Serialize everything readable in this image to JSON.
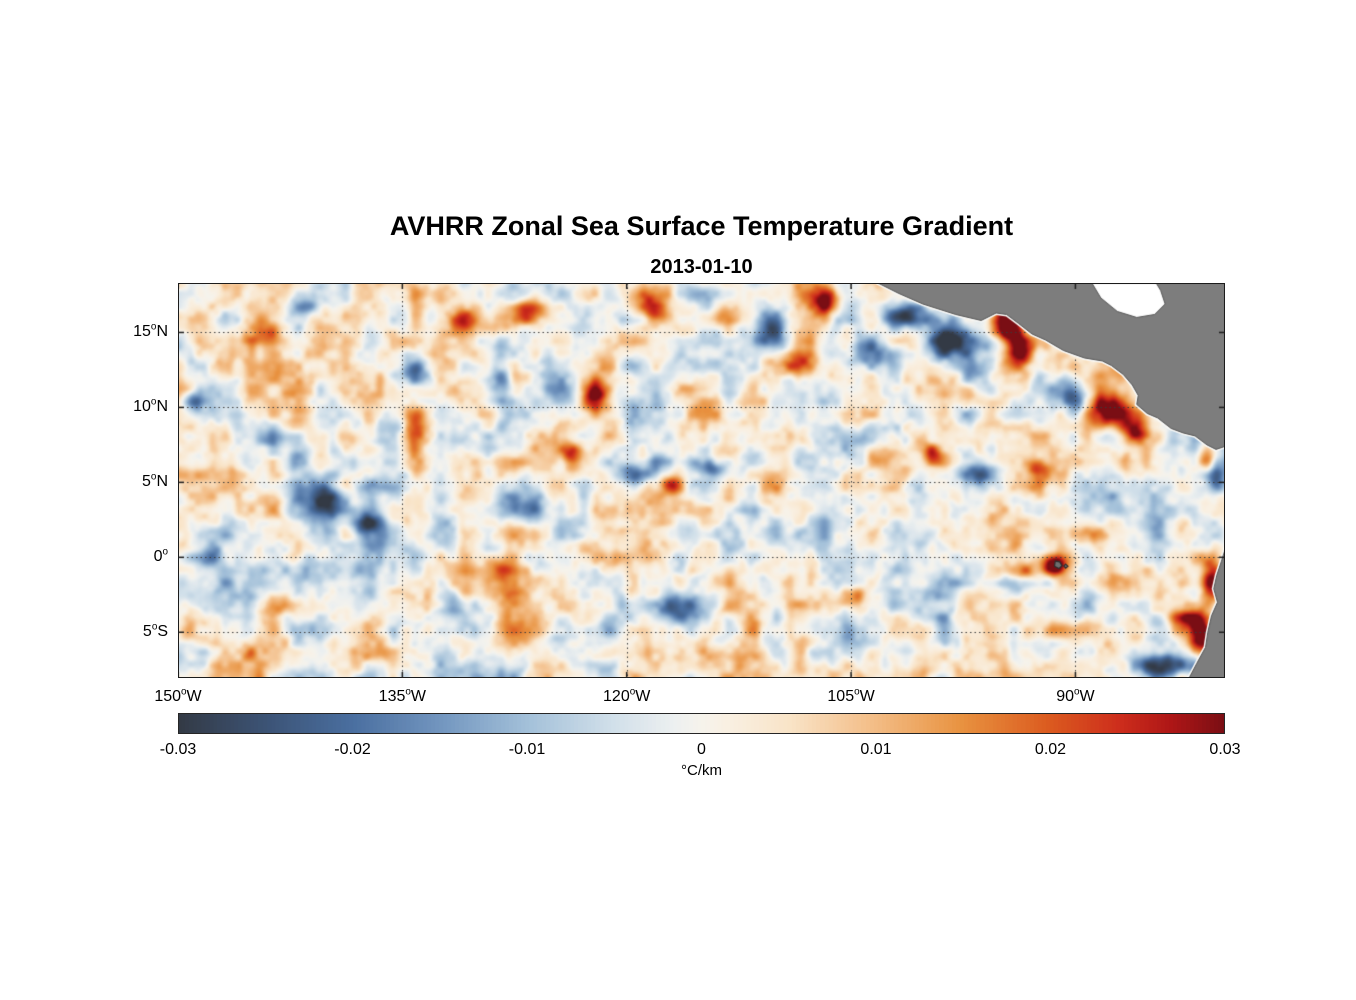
{
  "chart_data": {
    "type": "heatmap",
    "title": "AVHRR Zonal Sea Surface Temperature Gradient",
    "subtitle": "2013-01-10",
    "degree_mark": "o",
    "x_axis": {
      "ticks": [
        {
          "num": "150",
          "suffix": "W",
          "lon": -150
        },
        {
          "num": "135",
          "suffix": "W",
          "lon": -135
        },
        {
          "num": "120",
          "suffix": "W",
          "lon": -120
        },
        {
          "num": "105",
          "suffix": "W",
          "lon": -105
        },
        {
          "num": "90",
          "suffix": "W",
          "lon": -90
        }
      ]
    },
    "y_axis": {
      "ticks": [
        {
          "num": "15",
          "suffix": "N",
          "lat": 15
        },
        {
          "num": "10",
          "suffix": "N",
          "lat": 10
        },
        {
          "num": "5",
          "suffix": "N",
          "lat": 5
        },
        {
          "num": "0",
          "suffix": "",
          "lat": 0
        },
        {
          "num": "5",
          "suffix": "S",
          "lat": -5
        }
      ]
    },
    "colorbar": {
      "range": [
        -0.03,
        0.03
      ],
      "label": "°C/km",
      "ticks": [
        {
          "label": "-0.03",
          "v": -0.03
        },
        {
          "label": "-0.02",
          "v": -0.02
        },
        {
          "label": "-0.01",
          "v": -0.01
        },
        {
          "label": "0",
          "v": 0
        },
        {
          "label": "0.01",
          "v": 0.01
        },
        {
          "label": "0.02",
          "v": 0.02
        },
        {
          "label": "0.03",
          "v": 0.03
        }
      ]
    },
    "colormap_stops": [
      [
        -0.03,
        "#333a45"
      ],
      [
        -0.025,
        "#3c5375"
      ],
      [
        -0.02,
        "#4a6fa0"
      ],
      [
        -0.015,
        "#7295bf"
      ],
      [
        -0.01,
        "#a3c0d9"
      ],
      [
        -0.005,
        "#d2e0ea"
      ],
      [
        -0.0015,
        "#edf0f0"
      ],
      [
        0.0,
        "#f6f3ec"
      ],
      [
        0.0015,
        "#f9f0e2"
      ],
      [
        0.005,
        "#f9e4c8"
      ],
      [
        0.01,
        "#f3bc85"
      ],
      [
        0.015,
        "#e8913f"
      ],
      [
        0.02,
        "#db5a1f"
      ],
      [
        0.024,
        "#cd2d1c"
      ],
      [
        0.027,
        "#ad1616"
      ],
      [
        0.03,
        "#7a0e14"
      ]
    ],
    "geo": {
      "lon_range": [
        -150,
        -80
      ],
      "lat_range": [
        -8.05,
        18.3
      ],
      "land_color": "#7d7d7d",
      "land_edge": "#555555",
      "coast_halo": "#fbfbf9",
      "island_color": "#6f6f6f",
      "island_edge": "#2e2e2e",
      "no_data_color": "#ffffff",
      "grid_color": "#3a3a3a",
      "frame_color": "#1c1c1c"
    },
    "land": {
      "central_america": [
        [
          -103.2,
          18.3
        ],
        [
          -101.8,
          17.6
        ],
        [
          -100.2,
          16.9
        ],
        [
          -98.0,
          16.2
        ],
        [
          -96.3,
          15.8
        ],
        [
          -95.3,
          16.3
        ],
        [
          -94.6,
          16.2
        ],
        [
          -93.8,
          15.6
        ],
        [
          -92.9,
          14.9
        ],
        [
          -92.0,
          14.5
        ],
        [
          -90.8,
          13.8
        ],
        [
          -89.4,
          13.3
        ],
        [
          -88.2,
          13.1
        ],
        [
          -87.6,
          12.8
        ],
        [
          -86.8,
          12.2
        ],
        [
          -86.2,
          11.5
        ],
        [
          -85.8,
          10.8
        ],
        [
          -85.9,
          10.2
        ],
        [
          -85.2,
          9.6
        ],
        [
          -84.5,
          9.3
        ],
        [
          -83.6,
          8.6
        ],
        [
          -82.8,
          8.3
        ],
        [
          -82.0,
          8.1
        ],
        [
          -81.2,
          7.5
        ],
        [
          -80.6,
          7.2
        ],
        [
          -80.0,
          7.4
        ],
        [
          -80.0,
          18.3
        ]
      ],
      "south_america": [
        [
          -80.0,
          0.5
        ],
        [
          -80.25,
          -0.3
        ],
        [
          -80.55,
          -1.2
        ],
        [
          -80.75,
          -2.1
        ],
        [
          -80.5,
          -3.0
        ],
        [
          -80.9,
          -3.9
        ],
        [
          -81.15,
          -5.0
        ],
        [
          -81.3,
          -6.0
        ],
        [
          -81.9,
          -7.1
        ],
        [
          -82.4,
          -8.05
        ],
        [
          -80.0,
          -8.05
        ]
      ],
      "caribbean_no_data": [
        [
          -88.9,
          18.3
        ],
        [
          -88.3,
          17.3
        ],
        [
          -87.2,
          16.4
        ],
        [
          -85.9,
          16.0
        ],
        [
          -84.7,
          16.2
        ],
        [
          -84.0,
          16.9
        ],
        [
          -84.3,
          17.8
        ],
        [
          -84.6,
          18.3
        ]
      ],
      "galapagos": [
        [
          [
            -91.35,
            -0.25
          ],
          [
            -91.05,
            -0.3
          ],
          [
            -90.9,
            -0.55
          ],
          [
            -91.1,
            -0.75
          ],
          [
            -91.4,
            -0.6
          ]
        ],
        [
          [
            -90.65,
            -0.45
          ],
          [
            -90.5,
            -0.6
          ],
          [
            -90.65,
            -0.72
          ],
          [
            -90.78,
            -0.58
          ]
        ]
      ]
    },
    "field": {
      "seed": 20130110,
      "bias": 0.0015,
      "octaves": [
        {
          "scale": 1.6,
          "amp": 0.009
        },
        {
          "scale": 0.8,
          "amp": 0.0055
        },
        {
          "scale": 3.2,
          "amp": 0.007
        },
        {
          "scale": 0.45,
          "amp": 0.0025
        }
      ],
      "features": [
        [
          -98.6,
          14.6,
          -0.03,
          1.1,
          0.9
        ],
        [
          -96.9,
          12.4,
          -0.024,
          0.9,
          0.9
        ],
        [
          -94.7,
          15.6,
          0.04,
          0.75,
          0.95
        ],
        [
          -93.8,
          13.9,
          0.026,
          0.55,
          0.8
        ],
        [
          -101.5,
          16.2,
          -0.02,
          1.0,
          0.6
        ],
        [
          -103.6,
          13.6,
          -0.024,
          1.4,
          0.8
        ],
        [
          -90.2,
          10.7,
          -0.03,
          0.85,
          0.95
        ],
        [
          -87.7,
          9.9,
          0.034,
          1.0,
          0.75
        ],
        [
          -86.0,
          8.5,
          0.024,
          0.6,
          0.6
        ],
        [
          -81.2,
          6.7,
          0.026,
          0.45,
          0.7
        ],
        [
          -80.7,
          5.6,
          -0.02,
          0.5,
          0.9
        ],
        [
          -91.5,
          -0.5,
          0.038,
          0.6,
          0.45
        ],
        [
          -93.7,
          -0.9,
          0.02,
          0.9,
          0.4
        ],
        [
          -80.9,
          -1.6,
          0.034,
          0.55,
          1.1
        ],
        [
          -81.6,
          -5.0,
          0.038,
          0.6,
          1.2
        ],
        [
          -82.8,
          -4.0,
          0.018,
          0.7,
          0.7
        ],
        [
          -83.9,
          -7.1,
          -0.032,
          1.4,
          0.6
        ],
        [
          -81.3,
          -7.6,
          -0.026,
          0.8,
          0.5
        ],
        [
          -140.3,
          3.6,
          -0.026,
          1.1,
          1.0
        ],
        [
          -137.6,
          2.3,
          -0.02,
          0.9,
          0.6
        ],
        [
          -148.8,
          10.4,
          -0.022,
          0.6,
          0.55
        ],
        [
          -134.6,
          12.4,
          -0.018,
          0.8,
          0.6
        ],
        [
          -134.2,
          8.6,
          0.022,
          0.5,
          0.9
        ],
        [
          -128.4,
          11.5,
          -0.022,
          0.5,
          1.4
        ],
        [
          -126.4,
          16.5,
          0.024,
          0.85,
          0.7
        ],
        [
          -122.2,
          10.9,
          0.03,
          0.6,
          0.8
        ],
        [
          -123.9,
          6.9,
          0.018,
          0.6,
          0.6
        ],
        [
          -127.4,
          3.4,
          -0.026,
          1.0,
          0.7
        ],
        [
          -119.7,
          5.6,
          -0.024,
          0.9,
          0.6
        ],
        [
          -116.9,
          4.9,
          0.022,
          0.5,
          0.6
        ],
        [
          -114.3,
          6.1,
          -0.018,
          0.8,
          0.45
        ],
        [
          -118.4,
          16.7,
          0.022,
          0.8,
          0.8
        ],
        [
          -113.4,
          16.1,
          0.018,
          0.6,
          0.6
        ],
        [
          -110.5,
          15.3,
          -0.024,
          1.0,
          0.85
        ],
        [
          -106.8,
          17.1,
          0.026,
          0.8,
          0.7
        ],
        [
          -108.5,
          13.0,
          0.018,
          0.6,
          0.6
        ],
        [
          -96.5,
          5.6,
          -0.02,
          1.0,
          0.6
        ],
        [
          -92.6,
          5.9,
          0.022,
          0.6,
          0.5
        ],
        [
          -99.7,
          7.0,
          0.02,
          0.5,
          0.5
        ],
        [
          -141.2,
          -0.6,
          -0.018,
          1.0,
          0.6
        ],
        [
          -147.6,
          0.1,
          -0.02,
          0.8,
          0.6
        ],
        [
          -131.6,
          -3.2,
          -0.022,
          0.9,
          0.6
        ],
        [
          -116.6,
          -3.4,
          -0.018,
          1.0,
          0.7
        ],
        [
          -105.2,
          -2.6,
          0.016,
          0.8,
          0.5
        ],
        [
          -128.6,
          -0.6,
          0.016,
          0.8,
          0.5
        ],
        [
          -103.4,
          6.6,
          0.018,
          0.7,
          0.6
        ],
        [
          -144.7,
          14.9,
          0.016,
          0.9,
          0.7
        ],
        [
          -141.5,
          16.8,
          -0.016,
          0.8,
          0.6
        ],
        [
          -131.0,
          15.8,
          0.018,
          0.7,
          0.6
        ]
      ]
    }
  }
}
